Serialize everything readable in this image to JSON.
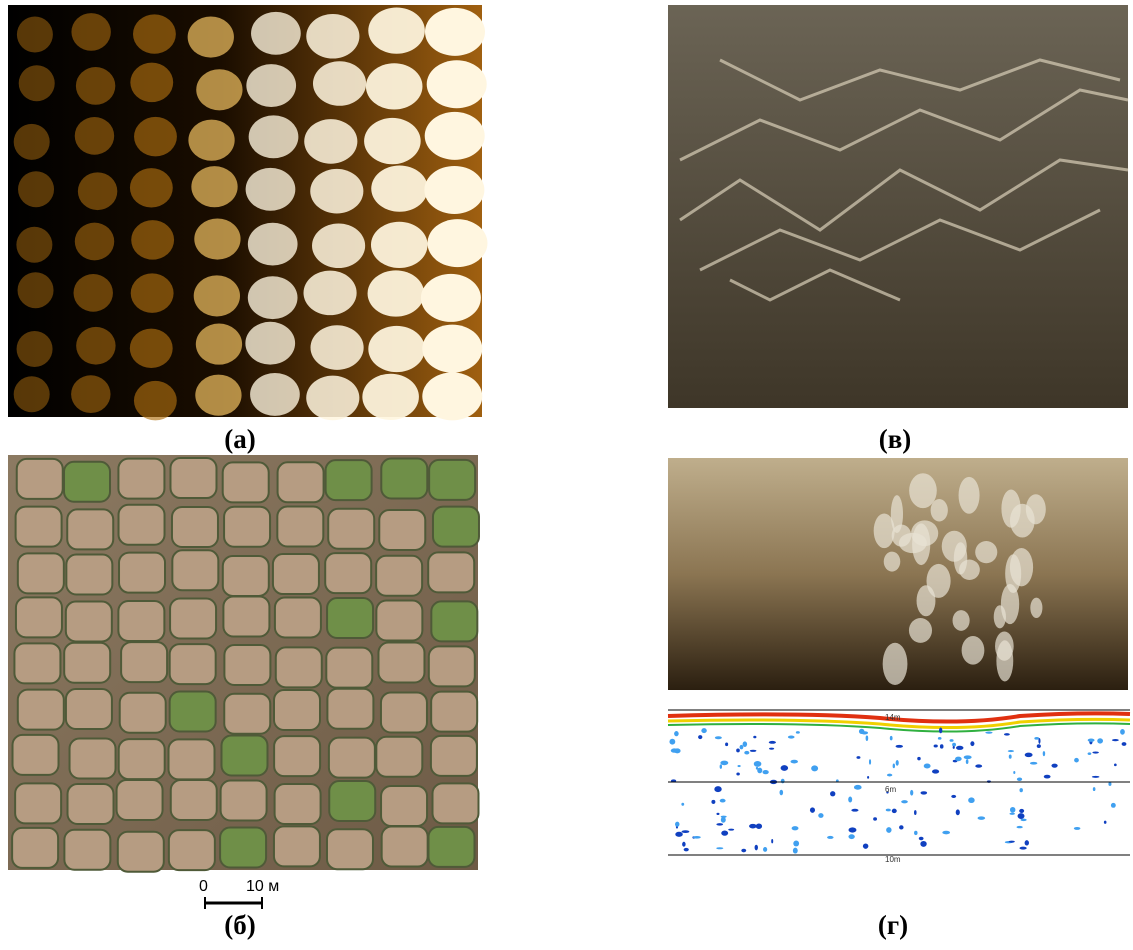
{
  "panels": [
    {
      "label": "(а)"
    },
    {
      "label": "(в)"
    },
    {
      "label": "(б)",
      "scale_bar": {
        "start": "0",
        "end": "10 м"
      }
    },
    {
      "label": "(г)",
      "depth_labels": [
        "14m",
        "6m",
        "10m"
      ]
    }
  ]
}
